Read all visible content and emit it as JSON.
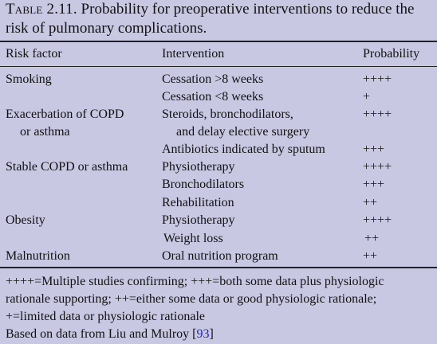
{
  "caption": {
    "label": "Table 2.11.",
    "text_line1": "Probability for preoperative interventions to reduce the",
    "text_line2": "risk of pulmonary complications."
  },
  "headers": {
    "risk_factor": "Risk factor",
    "intervention": "Intervention",
    "probability": "Probability"
  },
  "rows": [
    {
      "risk": "Smoking",
      "risk2": "",
      "intervention": "Cessation >8 weeks",
      "intervention2": "",
      "probability": "++++"
    },
    {
      "risk": "",
      "risk2": "",
      "intervention": "Cessation <8 weeks",
      "intervention2": "",
      "probability": "+"
    },
    {
      "risk": "Exacerbation of COPD",
      "risk2": "or asthma",
      "intervention": "Steroids, bronchodilators,",
      "intervention2": "and delay elective surgery",
      "probability": "++++"
    },
    {
      "risk": "",
      "risk2": "",
      "intervention": "Antibiotics indicated by sputum",
      "intervention2": "",
      "probability": "+++"
    },
    {
      "risk": "Stable COPD or asthma",
      "risk2": "",
      "intervention": "Physiotherapy",
      "intervention2": "",
      "probability": "++++"
    },
    {
      "risk": "",
      "risk2": "",
      "intervention": "Bronchodilators",
      "intervention2": "",
      "probability": "+++"
    },
    {
      "risk": "",
      "risk2": "",
      "intervention": "Rehabilitation",
      "intervention2": "",
      "probability": "++"
    },
    {
      "risk": "Obesity",
      "risk2": "",
      "intervention": "Physiotherapy",
      "intervention2": "",
      "probability": "++++"
    },
    {
      "risk": "",
      "risk2": "",
      "intervention": "Weight loss",
      "intervention2": "",
      "probability": "++"
    },
    {
      "risk": "Malnutrition",
      "risk2": "",
      "intervention": "Oral nutrition program",
      "intervention2": "",
      "probability": "++"
    }
  ],
  "footnote": {
    "line1": "++++=Multiple studies confirming; +++=both some data plus physiologic",
    "line2": "rationale supporting; ++=either some data or good physiologic rationale;",
    "line3": "+=limited data or physiologic rationale",
    "source_prefix": "Based on data from Liu and Mulroy [",
    "source_ref": "93",
    "source_suffix": "]"
  }
}
